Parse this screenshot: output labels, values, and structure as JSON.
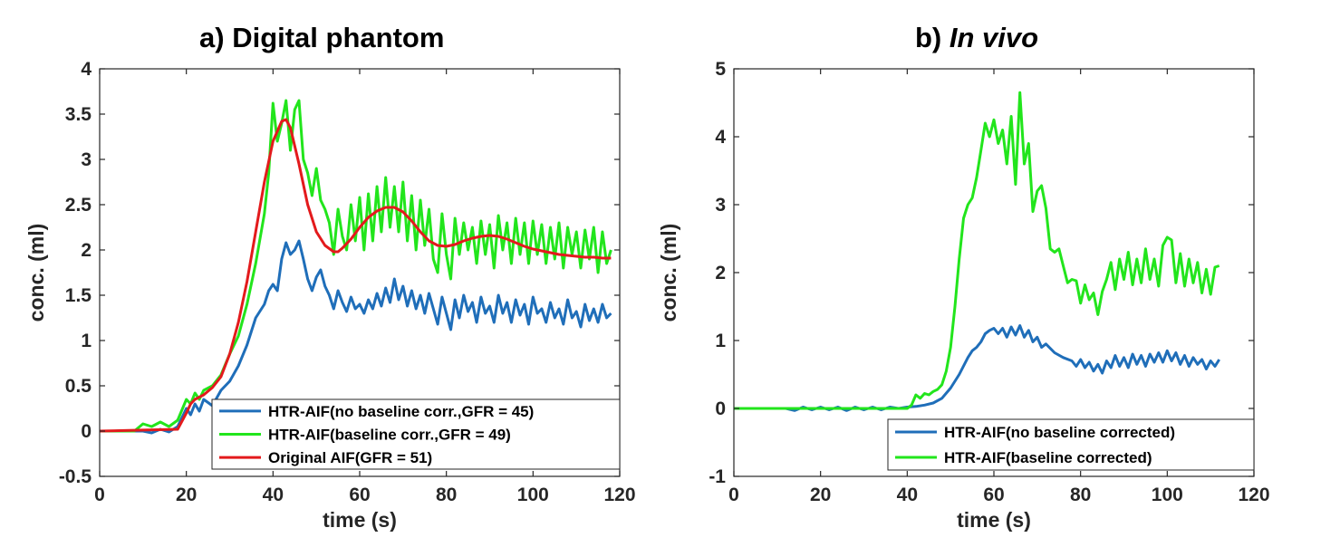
{
  "figure": {
    "background": "#ffffff"
  },
  "panels": [
    {
      "id": "a",
      "title_prefix": "a) ",
      "title_main": "Digital phantom",
      "title_italic": false
    },
    {
      "id": "b",
      "title_prefix": "b) ",
      "title_main": "In vivo",
      "title_italic": true
    }
  ],
  "chart_data": [
    {
      "type": "line",
      "title": "a) Digital phantom",
      "xlabel": "time (s)",
      "ylabel": "conc. (ml)",
      "xlim": [
        0,
        120
      ],
      "ylim": [
        -0.5,
        4
      ],
      "xticks": [
        0,
        20,
        40,
        60,
        80,
        100,
        120
      ],
      "xticklabels": [
        "0",
        "20",
        "40",
        "60",
        "80",
        "100",
        "120"
      ],
      "yticks": [
        -0.5,
        0,
        0.5,
        1,
        1.5,
        2,
        2.5,
        3,
        3.5,
        4
      ],
      "yticklabels": [
        "-0.5",
        "0",
        "0.5",
        "1",
        "1.5",
        "2",
        "2.5",
        "3",
        "3.5",
        "4"
      ],
      "grid": false,
      "legend_position": "bottom-right",
      "series": [
        {
          "name": "HTR-AIF(no baseline corr.,GFR = 45)",
          "color": "#1f6eb9",
          "x": [
            0,
            10,
            12,
            14,
            16,
            18,
            20,
            21,
            22,
            23,
            24,
            26,
            28,
            30,
            32,
            34,
            35,
            36,
            38,
            39,
            40,
            41,
            42,
            43,
            44,
            45,
            46,
            47,
            48,
            49,
            50,
            51,
            52,
            53,
            54,
            55,
            56,
            57,
            58,
            59,
            60,
            61,
            62,
            63,
            64,
            65,
            66,
            67,
            68,
            69,
            70,
            71,
            72,
            73,
            74,
            75,
            76,
            77,
            78,
            79,
            80,
            81,
            82,
            83,
            84,
            85,
            86,
            87,
            88,
            89,
            90,
            91,
            92,
            93,
            94,
            95,
            96,
            97,
            98,
            99,
            100,
            101,
            102,
            103,
            104,
            105,
            106,
            107,
            108,
            109,
            110,
            111,
            112,
            113,
            114,
            115,
            116,
            117,
            118
          ],
          "y": [
            0,
            0,
            -0.02,
            0.02,
            -0.01,
            0.05,
            0.25,
            0.18,
            0.3,
            0.22,
            0.35,
            0.28,
            0.45,
            0.55,
            0.72,
            0.95,
            1.1,
            1.25,
            1.4,
            1.55,
            1.62,
            1.55,
            1.9,
            2.08,
            1.95,
            2.0,
            2.1,
            1.9,
            1.68,
            1.55,
            1.7,
            1.78,
            1.6,
            1.5,
            1.35,
            1.55,
            1.42,
            1.32,
            1.48,
            1.35,
            1.4,
            1.3,
            1.45,
            1.35,
            1.52,
            1.38,
            1.58,
            1.42,
            1.68,
            1.45,
            1.6,
            1.38,
            1.55,
            1.35,
            1.5,
            1.3,
            1.52,
            1.35,
            1.18,
            1.48,
            1.3,
            1.12,
            1.45,
            1.25,
            1.5,
            1.32,
            1.42,
            1.2,
            1.48,
            1.3,
            1.38,
            1.2,
            1.5,
            1.3,
            1.42,
            1.2,
            1.45,
            1.28,
            1.4,
            1.18,
            1.48,
            1.3,
            1.35,
            1.2,
            1.42,
            1.25,
            1.35,
            1.18,
            1.45,
            1.25,
            1.32,
            1.15,
            1.4,
            1.22,
            1.35,
            1.2,
            1.4,
            1.25,
            1.3
          ]
        },
        {
          "name": "HTR-AIF(baseline corr.,GFR = 49)",
          "color": "#22e51c",
          "x": [
            0,
            8,
            10,
            12,
            14,
            16,
            18,
            20,
            21,
            22,
            23,
            24,
            26,
            28,
            30,
            32,
            34,
            36,
            38,
            39,
            40,
            41,
            42,
            43,
            44,
            45,
            46,
            47,
            48,
            49,
            50,
            51,
            52,
            53,
            54,
            55,
            56,
            57,
            58,
            59,
            60,
            61,
            62,
            63,
            64,
            65,
            66,
            67,
            68,
            69,
            70,
            71,
            72,
            73,
            74,
            75,
            76,
            77,
            78,
            79,
            80,
            81,
            82,
            83,
            84,
            85,
            86,
            87,
            88,
            89,
            90,
            91,
            92,
            93,
            94,
            95,
            96,
            97,
            98,
            99,
            100,
            101,
            102,
            103,
            104,
            105,
            106,
            107,
            108,
            109,
            110,
            111,
            112,
            113,
            114,
            115,
            116,
            117,
            118
          ],
          "y": [
            0,
            0,
            0.08,
            0.05,
            0.1,
            0.05,
            0.12,
            0.35,
            0.3,
            0.42,
            0.35,
            0.45,
            0.5,
            0.62,
            0.85,
            1.05,
            1.4,
            1.85,
            2.4,
            2.85,
            3.62,
            3.2,
            3.4,
            3.65,
            3.1,
            3.55,
            3.65,
            3.0,
            2.85,
            2.6,
            2.9,
            2.55,
            2.45,
            2.3,
            1.95,
            2.45,
            2.15,
            2.0,
            2.5,
            2.1,
            2.58,
            2.0,
            2.62,
            2.1,
            2.7,
            2.2,
            2.8,
            2.25,
            2.7,
            2.2,
            2.75,
            2.1,
            2.6,
            2.0,
            2.55,
            2.05,
            2.45,
            1.9,
            1.75,
            2.4,
            1.95,
            1.68,
            2.35,
            1.95,
            2.3,
            2.0,
            2.25,
            1.85,
            2.32,
            1.95,
            2.28,
            1.8,
            2.38,
            2.0,
            2.3,
            1.85,
            2.35,
            1.95,
            2.3,
            1.85,
            2.32,
            1.95,
            2.28,
            1.85,
            2.25,
            1.9,
            2.3,
            1.8,
            2.25,
            1.95,
            2.2,
            1.8,
            2.22,
            1.9,
            2.25,
            1.75,
            2.2,
            1.85,
            2.0
          ]
        },
        {
          "name": "Original AIF(GFR = 51)",
          "color": "#e31a1c",
          "x": [
            0,
            18,
            20,
            21,
            22,
            24,
            26,
            28,
            30,
            32,
            34,
            36,
            38,
            40,
            42,
            43,
            44,
            46,
            48,
            50,
            52,
            54,
            55,
            56,
            58,
            60,
            62,
            64,
            66,
            68,
            70,
            72,
            74,
            76,
            78,
            80,
            82,
            84,
            86,
            88,
            90,
            92,
            94,
            96,
            98,
            100,
            102,
            104,
            106,
            108,
            110,
            112,
            114,
            116,
            118
          ],
          "y": [
            0,
            0.02,
            0.2,
            0.3,
            0.35,
            0.4,
            0.48,
            0.6,
            0.85,
            1.2,
            1.65,
            2.2,
            2.75,
            3.2,
            3.42,
            3.44,
            3.35,
            2.95,
            2.5,
            2.2,
            2.05,
            1.98,
            1.98,
            2.02,
            2.12,
            2.25,
            2.36,
            2.43,
            2.47,
            2.47,
            2.42,
            2.32,
            2.2,
            2.1,
            2.05,
            2.04,
            2.06,
            2.1,
            2.13,
            2.15,
            2.16,
            2.15,
            2.12,
            2.08,
            2.04,
            2.01,
            1.99,
            1.97,
            1.95,
            1.94,
            1.93,
            1.92,
            1.92,
            1.91,
            1.91
          ]
        }
      ]
    },
    {
      "type": "line",
      "title": "b) In vivo",
      "xlabel": "time (s)",
      "ylabel": "conc. (ml)",
      "xlim": [
        0,
        120
      ],
      "ylim": [
        -1,
        5
      ],
      "xticks": [
        0,
        20,
        40,
        60,
        80,
        100,
        120
      ],
      "xticklabels": [
        "0",
        "20",
        "40",
        "60",
        "80",
        "100",
        "120"
      ],
      "yticks": [
        -1,
        0,
        1,
        2,
        3,
        4,
        5
      ],
      "yticklabels": [
        "-1",
        "0",
        "1",
        "2",
        "3",
        "4",
        "5"
      ],
      "grid": false,
      "legend_position": "bottom-right",
      "series": [
        {
          "name": "HTR-AIF(no baseline corrected)",
          "color": "#1f6eb9",
          "x": [
            0,
            12,
            14,
            16,
            18,
            20,
            22,
            24,
            26,
            28,
            30,
            32,
            34,
            36,
            38,
            40,
            42,
            44,
            46,
            48,
            50,
            52,
            54,
            55,
            56,
            57,
            58,
            59,
            60,
            61,
            62,
            63,
            64,
            65,
            66,
            67,
            68,
            69,
            70,
            71,
            72,
            74,
            76,
            78,
            79,
            80,
            81,
            82,
            83,
            84,
            85,
            86,
            87,
            88,
            89,
            90,
            91,
            92,
            93,
            94,
            95,
            96,
            97,
            98,
            99,
            100,
            101,
            102,
            103,
            104,
            105,
            106,
            107,
            108,
            109,
            110,
            111,
            112
          ],
          "y": [
            0,
            0,
            -0.03,
            0.02,
            -0.02,
            0.02,
            -0.02,
            0.02,
            -0.03,
            0.02,
            -0.02,
            0.02,
            -0.02,
            0.02,
            0,
            0.02,
            0.03,
            0.05,
            0.08,
            0.15,
            0.3,
            0.5,
            0.75,
            0.85,
            0.9,
            0.98,
            1.1,
            1.15,
            1.18,
            1.1,
            1.18,
            1.05,
            1.2,
            1.08,
            1.22,
            1.05,
            1.15,
            0.98,
            1.05,
            0.9,
            0.95,
            0.82,
            0.75,
            0.7,
            0.62,
            0.72,
            0.6,
            0.68,
            0.55,
            0.65,
            0.52,
            0.7,
            0.6,
            0.78,
            0.62,
            0.75,
            0.6,
            0.8,
            0.65,
            0.78,
            0.62,
            0.8,
            0.68,
            0.82,
            0.68,
            0.85,
            0.7,
            0.82,
            0.65,
            0.78,
            0.62,
            0.75,
            0.65,
            0.72,
            0.58,
            0.7,
            0.62,
            0.72
          ]
        },
        {
          "name": "HTR-AIF(baseline corrected)",
          "color": "#22e51c",
          "x": [
            0,
            12,
            20,
            30,
            40,
            41,
            42,
            43,
            44,
            45,
            46,
            47,
            48,
            49,
            50,
            51,
            52,
            53,
            54,
            55,
            56,
            57,
            58,
            59,
            60,
            61,
            62,
            63,
            64,
            65,
            66,
            67,
            68,
            69,
            70,
            71,
            72,
            73,
            74,
            75,
            76,
            77,
            78,
            79,
            80,
            81,
            82,
            83,
            84,
            85,
            86,
            87,
            88,
            89,
            90,
            91,
            92,
            93,
            94,
            95,
            96,
            97,
            98,
            99,
            100,
            101,
            102,
            103,
            104,
            105,
            106,
            107,
            108,
            109,
            110,
            111,
            112
          ],
          "y": [
            0,
            0,
            0,
            0,
            0,
            0.05,
            0.2,
            0.15,
            0.22,
            0.2,
            0.25,
            0.28,
            0.35,
            0.55,
            0.9,
            1.5,
            2.2,
            2.8,
            3.0,
            3.1,
            3.4,
            3.8,
            4.2,
            4.0,
            4.25,
            3.9,
            4.1,
            3.6,
            4.3,
            3.3,
            4.65,
            3.6,
            3.9,
            2.9,
            3.2,
            3.28,
            2.95,
            2.35,
            2.3,
            2.35,
            2.1,
            1.85,
            1.9,
            1.88,
            1.55,
            1.82,
            1.6,
            1.7,
            1.38,
            1.72,
            1.9,
            2.15,
            1.75,
            2.2,
            1.9,
            2.3,
            1.82,
            2.2,
            1.85,
            2.35,
            1.9,
            2.2,
            1.8,
            2.4,
            2.52,
            2.48,
            1.85,
            2.28,
            1.8,
            2.2,
            1.85,
            2.15,
            1.7,
            2.05,
            1.68,
            2.08,
            2.1
          ]
        }
      ]
    }
  ]
}
